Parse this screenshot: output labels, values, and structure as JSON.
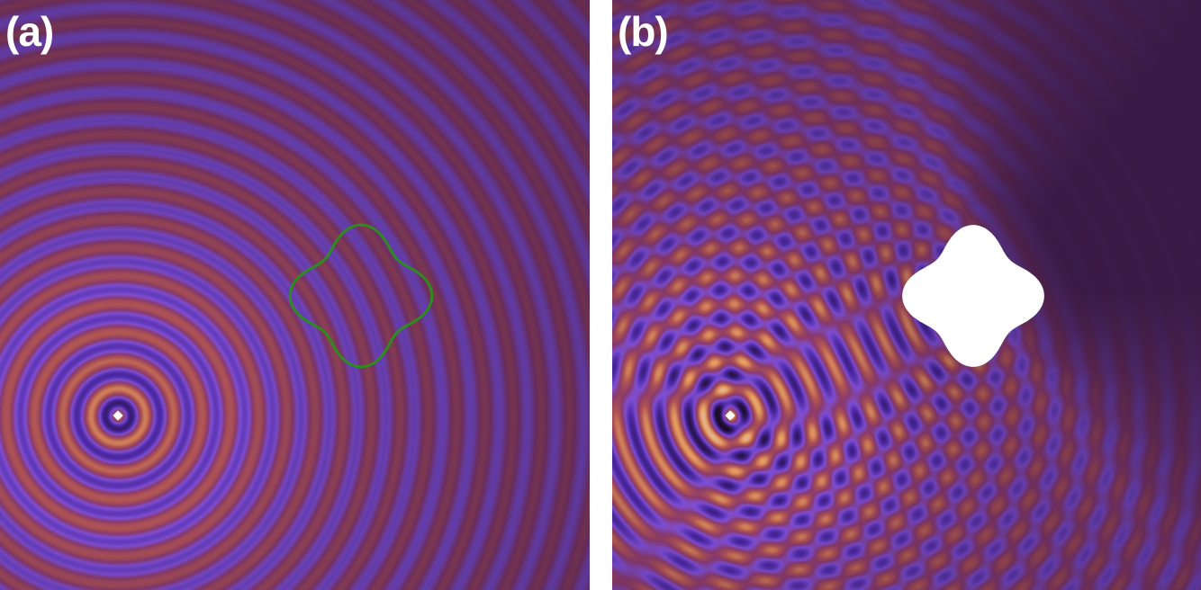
{
  "panels": [
    {
      "id": "a",
      "label": "(a)"
    },
    {
      "id": "b",
      "label": "(b)"
    }
  ],
  "colors": {
    "scatterer_outline": "#2e8b1f",
    "scatterer_fill": "#ffffff",
    "source_marker": "#ffffff",
    "colormap": [
      "#1c0c2c",
      "#4a27a0",
      "#7e4fd6",
      "#8a3a6c",
      "#b05552",
      "#e8a060",
      "#cfe6ff"
    ]
  }
}
